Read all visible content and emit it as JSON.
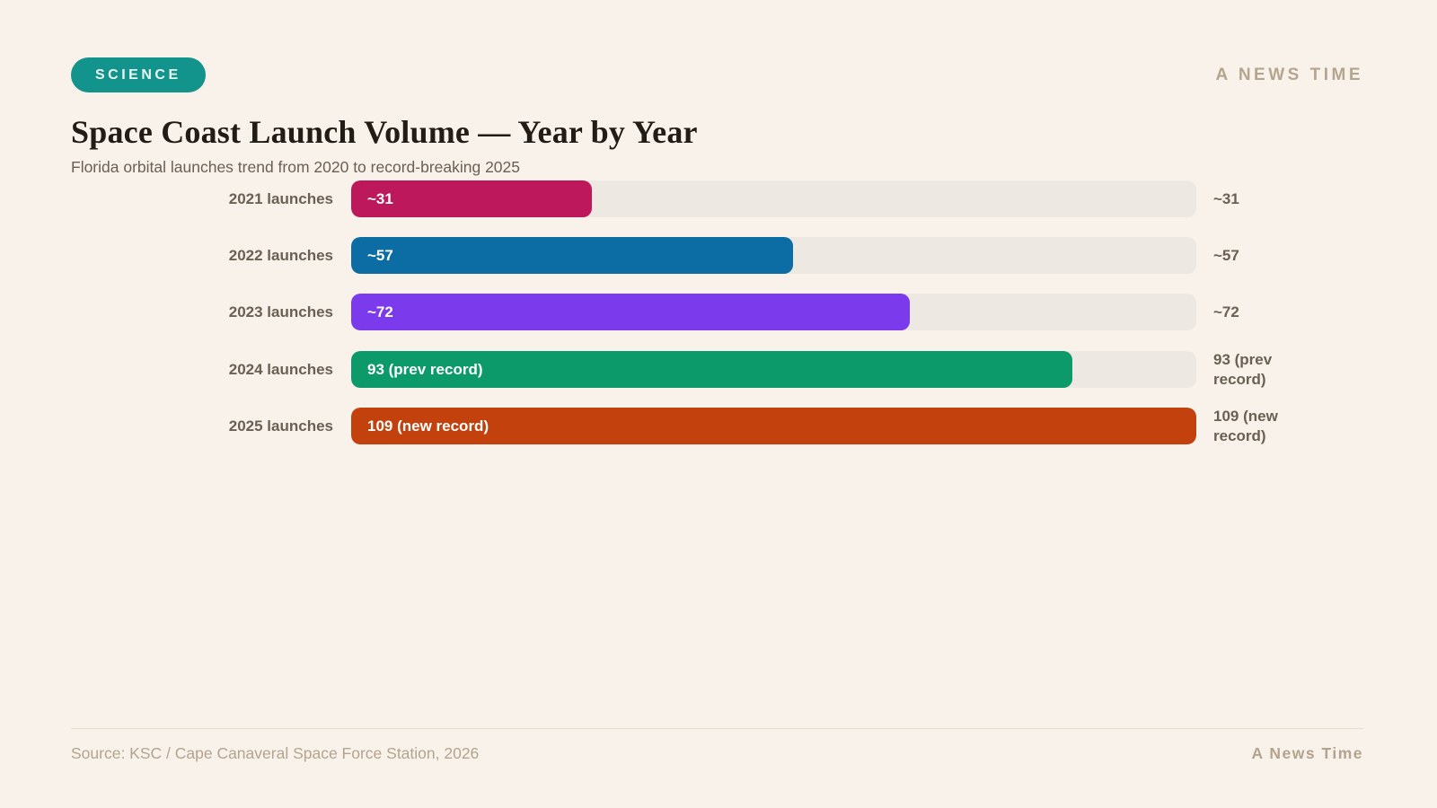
{
  "header": {
    "badge": "SCIENCE",
    "badge_color": "#12948C",
    "badge_text_color": "#EAF6F2",
    "brand": "A NEWS TIME",
    "brand_color": "#B5A58E"
  },
  "title": "Space Coast Launch Volume — Year by Year",
  "subtitle": "Florida orbital launches trend from 2020 to record-breaking 2025",
  "chart_data": {
    "type": "bar",
    "orientation": "horizontal",
    "categories": [
      "2021 launches",
      "2022 launches",
      "2023 launches",
      "2024 launches",
      "2025 launches"
    ],
    "values": [
      31,
      57,
      72,
      93,
      109
    ],
    "bar_labels": [
      "~31",
      "~57",
      "~72",
      "93 (prev record)",
      "109 (new record)"
    ],
    "end_labels": [
      "~31",
      "~57",
      "~72",
      "93 (prev record)",
      "109 (new record)"
    ],
    "colors": [
      "#BE185D",
      "#0B6DA4",
      "#7C3AED",
      "#0C9A6B",
      "#C2410C"
    ],
    "track_color": "#EDE9E2",
    "xlim": [
      0,
      109
    ],
    "grid": false,
    "legend": false
  },
  "footer": {
    "source": "Source: KSC / Cape Canaveral Space Force Station, 2026",
    "brand": "A News Time"
  }
}
